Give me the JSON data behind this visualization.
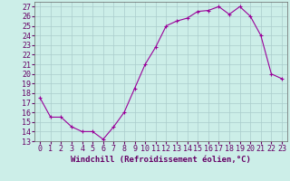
{
  "x": [
    0,
    1,
    2,
    3,
    4,
    5,
    6,
    7,
    8,
    9,
    10,
    11,
    12,
    13,
    14,
    15,
    16,
    17,
    18,
    19,
    20,
    21,
    22,
    23
  ],
  "y": [
    17.5,
    15.5,
    15.5,
    14.5,
    14.0,
    14.0,
    13.2,
    14.5,
    16.0,
    18.5,
    21.0,
    22.8,
    25.0,
    25.5,
    25.8,
    26.5,
    26.6,
    27.0,
    26.2,
    27.0,
    26.0,
    24.0,
    20.0,
    19.5
  ],
  "line_color": "#990099",
  "marker": "+",
  "marker_color": "#990099",
  "bg_color": "#cceee8",
  "grid_color": "#aacccc",
  "xlabel": "Windchill (Refroidissement éolien,°C)",
  "xlim": [
    -0.5,
    23.5
  ],
  "ylim": [
    13,
    27.5
  ],
  "yticks": [
    13,
    14,
    15,
    16,
    17,
    18,
    19,
    20,
    21,
    22,
    23,
    24,
    25,
    26,
    27
  ],
  "xticks": [
    0,
    1,
    2,
    3,
    4,
    5,
    6,
    7,
    8,
    9,
    10,
    11,
    12,
    13,
    14,
    15,
    16,
    17,
    18,
    19,
    20,
    21,
    22,
    23
  ],
  "xlabel_fontsize": 6.5,
  "tick_fontsize": 6,
  "marker_size": 3,
  "line_width": 0.8,
  "label_color": "#660066"
}
